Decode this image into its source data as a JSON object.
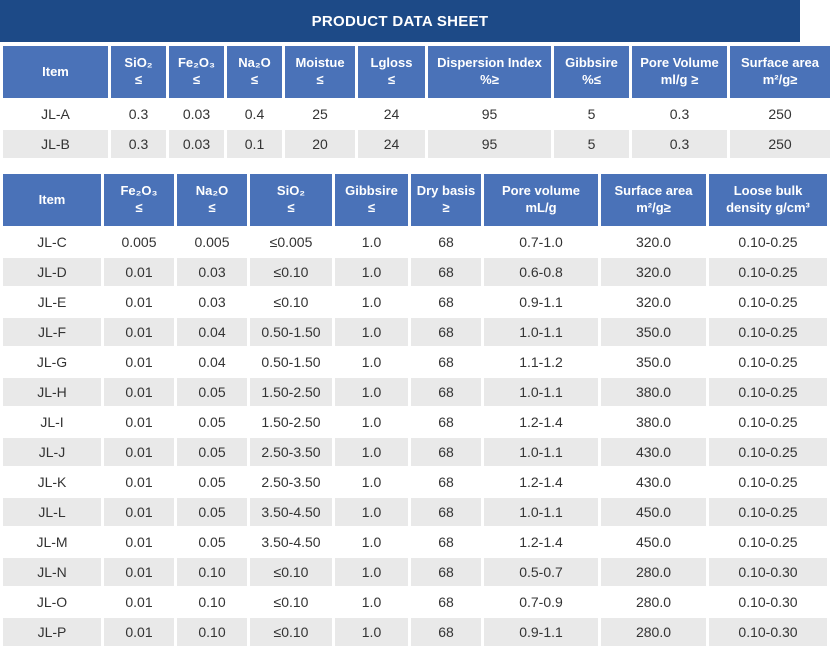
{
  "title": "PRODUCT DATA SHEET",
  "colors": {
    "title_bar_bg": "#1d4a87",
    "header_cell_bg": "#4a72b8",
    "stripe_row_bg": "#e9e9e9",
    "body_text": "#333333"
  },
  "table1": {
    "headers": [
      {
        "line1": "Item",
        "line2": ""
      },
      {
        "line1": "SiO₂",
        "line2": "≤"
      },
      {
        "line1": "Fe₂O₃",
        "line2": "≤"
      },
      {
        "line1": "Na₂O",
        "line2": "≤"
      },
      {
        "line1": "Moistue",
        "line2": "≤"
      },
      {
        "line1": "Lgloss",
        "line2": "≤"
      },
      {
        "line1": "Dispersion Index",
        "line2": "%≥"
      },
      {
        "line1": "Gibbsire",
        "line2": "%≤"
      },
      {
        "line1": "Pore Volume",
        "line2": "ml/g ≥"
      },
      {
        "line1": "Surface area",
        "line2": "m²/g≥"
      }
    ],
    "rows": [
      [
        "JL-A",
        "0.3",
        "0.03",
        "0.4",
        "25",
        "24",
        "95",
        "5",
        "0.3",
        "250"
      ],
      [
        "JL-B",
        "0.3",
        "0.03",
        "0.1",
        "20",
        "24",
        "95",
        "5",
        "0.3",
        "250"
      ]
    ]
  },
  "table2": {
    "headers": [
      {
        "line1": "Item",
        "line2": ""
      },
      {
        "line1": "Fe₂O₃",
        "line2": "≤"
      },
      {
        "line1": "Na₂O",
        "line2": "≤"
      },
      {
        "line1": "SiO₂",
        "line2": "≤"
      },
      {
        "line1": "Gibbsire",
        "line2": "≤"
      },
      {
        "line1": "Dry basis",
        "line2": "≥"
      },
      {
        "line1": "Pore volume",
        "line2": "mL/g"
      },
      {
        "line1": "Surface area",
        "line2": "m²/g≥"
      },
      {
        "line1": "Loose bulk",
        "line2": "density g/cm³"
      }
    ],
    "rows": [
      [
        "JL-C",
        "0.005",
        "0.005",
        "≤0.005",
        "1.0",
        "68",
        "0.7-1.0",
        "320.0",
        "0.10-0.25"
      ],
      [
        "JL-D",
        "0.01",
        "0.03",
        "≤0.10",
        "1.0",
        "68",
        "0.6-0.8",
        "320.0",
        "0.10-0.25"
      ],
      [
        "JL-E",
        "0.01",
        "0.03",
        "≤0.10",
        "1.0",
        "68",
        "0.9-1.1",
        "320.0",
        "0.10-0.25"
      ],
      [
        "JL-F",
        "0.01",
        "0.04",
        "0.50-1.50",
        "1.0",
        "68",
        "1.0-1.1",
        "350.0",
        "0.10-0.25"
      ],
      [
        "JL-G",
        "0.01",
        "0.04",
        "0.50-1.50",
        "1.0",
        "68",
        "1.1-1.2",
        "350.0",
        "0.10-0.25"
      ],
      [
        "JL-H",
        "0.01",
        "0.05",
        "1.50-2.50",
        "1.0",
        "68",
        "1.0-1.1",
        "380.0",
        "0.10-0.25"
      ],
      [
        "JL-I",
        "0.01",
        "0.05",
        "1.50-2.50",
        "1.0",
        "68",
        "1.2-1.4",
        "380.0",
        "0.10-0.25"
      ],
      [
        "JL-J",
        "0.01",
        "0.05",
        "2.50-3.50",
        "1.0",
        "68",
        "1.0-1.1",
        "430.0",
        "0.10-0.25"
      ],
      [
        "JL-K",
        "0.01",
        "0.05",
        "2.50-3.50",
        "1.0",
        "68",
        "1.2-1.4",
        "430.0",
        "0.10-0.25"
      ],
      [
        "JL-L",
        "0.01",
        "0.05",
        "3.50-4.50",
        "1.0",
        "68",
        "1.0-1.1",
        "450.0",
        "0.10-0.25"
      ],
      [
        "JL-M",
        "0.01",
        "0.05",
        "3.50-4.50",
        "1.0",
        "68",
        "1.2-1.4",
        "450.0",
        "0.10-0.25"
      ],
      [
        "JL-N",
        "0.01",
        "0.10",
        "≤0.10",
        "1.0",
        "68",
        "0.5-0.7",
        "280.0",
        "0.10-0.30"
      ],
      [
        "JL-O",
        "0.01",
        "0.10",
        "≤0.10",
        "1.0",
        "68",
        "0.7-0.9",
        "280.0",
        "0.10-0.30"
      ],
      [
        "JL-P",
        "0.01",
        "0.10",
        "≤0.10",
        "1.0",
        "68",
        "0.9-1.1",
        "280.0",
        "0.10-0.30"
      ]
    ]
  }
}
